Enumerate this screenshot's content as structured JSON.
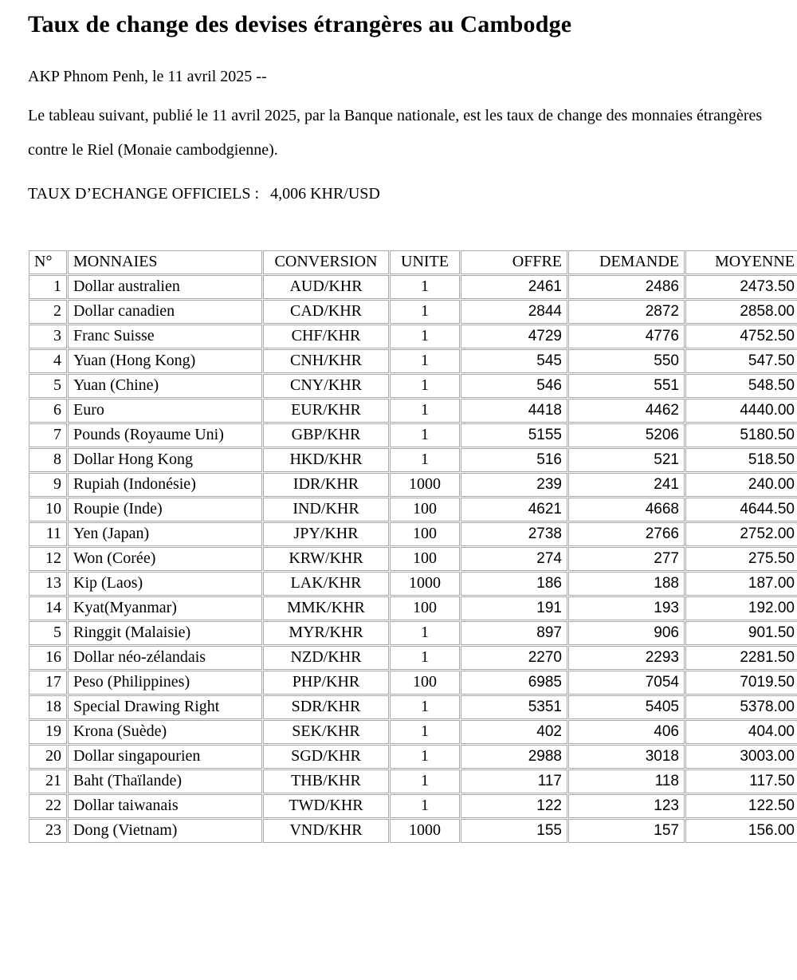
{
  "article": {
    "title": "Taux de change des devises étrangères au Cambodge",
    "dateline": "AKP Phnom Penh, le 11 avril 2025 --",
    "intro": "Le tableau suivant, publié le 11 avril 2025, par la Banque nationale, est les taux de change des monnaies étrangères contre le Riel (Monaie cambodgienne).",
    "official_rate_label": "TAUX D’ECHANGE OFFICIELS :",
    "official_rate_value": "4,006 KHR/USD"
  },
  "table": {
    "headers": [
      "N°",
      "MONNAIES",
      "CONVERSION",
      "UNITE",
      "OFFRE",
      "DEMANDE",
      "MOYENNE"
    ],
    "rows": [
      [
        "1",
        "Dollar australien",
        "AUD/KHR",
        "1",
        "2461",
        "2486",
        "2473.50"
      ],
      [
        "2",
        "Dollar canadien",
        "CAD/KHR",
        "1",
        "2844",
        "2872",
        "2858.00"
      ],
      [
        "3",
        "Franc Suisse",
        "CHF/KHR",
        "1",
        "4729",
        "4776",
        "4752.50"
      ],
      [
        "4",
        "Yuan (Hong Kong)",
        "CNH/KHR",
        "1",
        "545",
        "550",
        "547.50"
      ],
      [
        "5",
        "Yuan (Chine)",
        "CNY/KHR",
        "1",
        "546",
        "551",
        "548.50"
      ],
      [
        "6",
        "Euro",
        "EUR/KHR",
        "1",
        "4418",
        "4462",
        "4440.00"
      ],
      [
        "7",
        "Pounds (Royaume Uni)",
        "GBP/KHR",
        "1",
        "5155",
        "5206",
        "5180.50"
      ],
      [
        "8",
        "Dollar Hong Kong",
        "HKD/KHR",
        "1",
        "516",
        "521",
        "518.50"
      ],
      [
        "9",
        "Rupiah (Indonésie)",
        "IDR/KHR",
        "1000",
        "239",
        "241",
        "240.00"
      ],
      [
        "10",
        "Roupie (Inde)",
        "IND/KHR",
        "100",
        "4621",
        "4668",
        "4644.50"
      ],
      [
        "11",
        "Yen (Japan)",
        "JPY/KHR",
        "100",
        "2738",
        "2766",
        "2752.00"
      ],
      [
        "12",
        "Won (Corée)",
        "KRW/KHR",
        "100",
        "274",
        "277",
        "275.50"
      ],
      [
        "13",
        "Kip (Laos)",
        "LAK/KHR",
        "1000",
        "186",
        "188",
        "187.00"
      ],
      [
        "14",
        "Kyat(Myanmar)",
        "MMK/KHR",
        "100",
        "191",
        "193",
        "192.00"
      ],
      [
        "5",
        "Ringgit (Malaisie)",
        "MYR/KHR",
        "1",
        "897",
        "906",
        "901.50"
      ],
      [
        "16",
        "Dollar néo-zélandais",
        "NZD/KHR",
        "1",
        "2270",
        "2293",
        "2281.50"
      ],
      [
        "17",
        "Peso (Philippines)",
        "PHP/KHR",
        "100",
        "6985",
        "7054",
        "7019.50"
      ],
      [
        "18",
        "Special Drawing Right",
        "SDR/KHR",
        "1",
        "5351",
        "5405",
        "5378.00"
      ],
      [
        "19",
        "Krona (Suède)",
        "SEK/KHR",
        "1",
        "402",
        "406",
        "404.00"
      ],
      [
        "20",
        "Dollar singapourien",
        "SGD/KHR",
        "1",
        "2988",
        "3018",
        "3003.00"
      ],
      [
        "21",
        "Baht (Thaïlande)",
        "THB/KHR",
        "1",
        "117",
        "118",
        "117.50"
      ],
      [
        "22",
        "Dollar taiwanais",
        "TWD/KHR",
        "1",
        "122",
        "123",
        "122.50"
      ],
      [
        "23",
        "Dong (Vietnam)",
        "VND/KHR",
        "1000",
        "155",
        "157",
        "156.00"
      ]
    ],
    "column_names": [
      "row-number",
      "currency-name",
      "conversion-pair",
      "unit",
      "offer-rate",
      "demand-rate",
      "average-rate"
    ]
  }
}
